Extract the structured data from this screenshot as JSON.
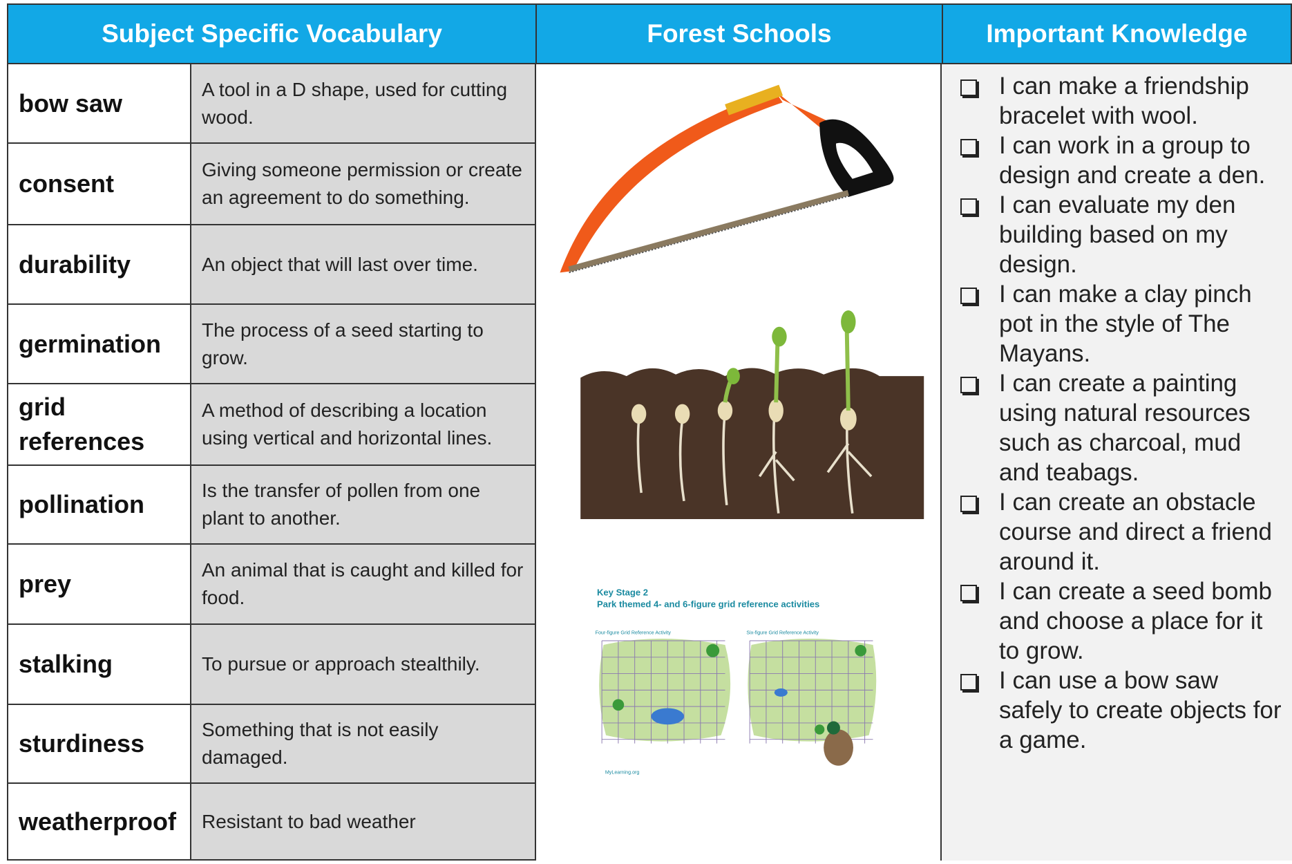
{
  "header": {
    "columns": [
      "Subject Specific Vocabulary",
      "Forest Schools",
      "Important Knowledge"
    ]
  },
  "vocabulary": [
    {
      "term": "bow saw",
      "definition": "A tool in a D shape, used for cutting wood."
    },
    {
      "term": "consent",
      "definition": "Giving someone permission or create an agreement to do something."
    },
    {
      "term": "durability",
      "definition": "An object that will last over time."
    },
    {
      "term": "germination",
      "definition": "The process of a seed starting to grow."
    },
    {
      "term": "grid references",
      "definition": "A method of describing a location using vertical and horizontal lines."
    },
    {
      "term": "pollination",
      "definition": "Is the transfer of pollen  from one plant to another."
    },
    {
      "term": "prey",
      "definition": "An animal that is caught and killed for food."
    },
    {
      "term": "stalking",
      "definition": "To pursue or approach stealthily."
    },
    {
      "term": "sturdiness",
      "definition": "Something that is not easily damaged."
    },
    {
      "term": "weatherproof",
      "definition": "Resistant to bad weather"
    }
  ],
  "knowledge": [
    "I can make a friendship bracelet with wool.",
    "I can work in a group to design and create a den.",
    "I can evaluate my den building based on my design.",
    "I can make a clay pinch pot in the style of The Mayans.",
    "I can create a painting using natural resources such as charcoal, mud and teabags.",
    "I can create an obstacle course and direct a friend around it.",
    "I can create a seed bomb and choose a place for it to grow.",
    "I can use a bow saw safely to create objects for a game."
  ],
  "map_image": {
    "title": "Key Stage 2",
    "subtitle": "Park themed 4- and 6-figure grid reference activities",
    "panel_left": "Four-figure Grid Reference Activity",
    "panel_right": "Six-figure Grid Reference Activity",
    "credit": "MyLearning.org"
  }
}
